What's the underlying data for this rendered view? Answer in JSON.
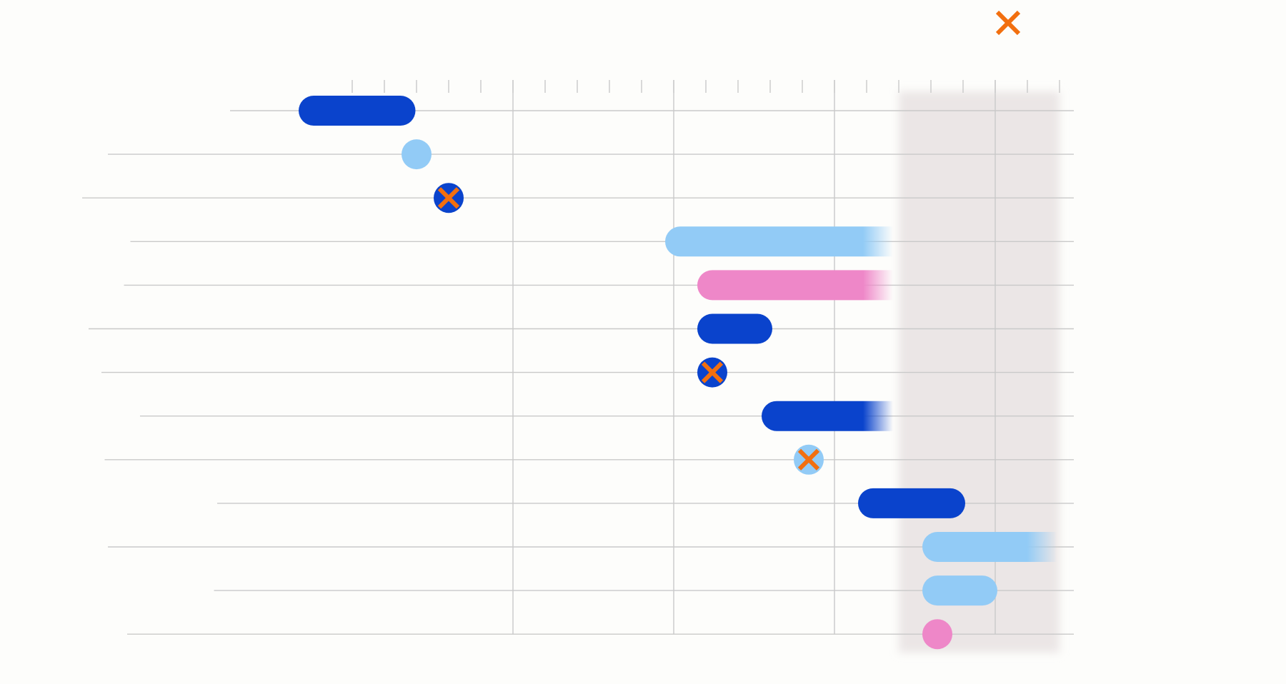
{
  "chart_data": {
    "type": "gantt",
    "title": "",
    "x_axis": {
      "unit": "month",
      "range": [
        0,
        22
      ],
      "major_every": 5,
      "grid": true
    },
    "highlight_region": {
      "from": 17.0,
      "to": 22.0,
      "color": "#ebe6e6"
    },
    "legend_marker": {
      "symbol": "x",
      "color": "#f26f0f"
    },
    "colors": {
      "dark_blue": "#0a43cc",
      "light_blue": "#92cbf6",
      "pink": "#ee87c8",
      "marker": "#f26f0f",
      "grid": "#c9c9c9"
    },
    "rows": [
      {
        "start": -1.2,
        "end": 1.5,
        "color": "dark_blue",
        "marker": false,
        "fade": false,
        "line_from": -3.8
      },
      {
        "start": 2.0,
        "end": 2.0,
        "color": "light_blue",
        "marker": false,
        "fade": false,
        "line_from": -7.6
      },
      {
        "start": 3.0,
        "end": 3.0,
        "color": "dark_blue",
        "marker": true,
        "fade": false,
        "line_from": -8.4
      },
      {
        "start": 10.2,
        "end": 16.2,
        "color": "light_blue",
        "marker": false,
        "fade": true,
        "line_from": -6.9
      },
      {
        "start": 11.2,
        "end": 16.2,
        "color": "pink",
        "marker": false,
        "fade": true,
        "line_from": -7.1
      },
      {
        "start": 11.2,
        "end": 12.6,
        "color": "dark_blue",
        "marker": false,
        "fade": false,
        "line_from": -8.2
      },
      {
        "start": 11.2,
        "end": 11.2,
        "color": "dark_blue",
        "marker": true,
        "fade": false,
        "line_from": -7.8
      },
      {
        "start": 13.2,
        "end": 16.2,
        "color": "dark_blue",
        "marker": false,
        "fade": true,
        "line_from": -6.6
      },
      {
        "start": 14.2,
        "end": 14.2,
        "color": "light_blue",
        "marker": true,
        "fade": false,
        "line_from": -7.7
      },
      {
        "start": 16.2,
        "end": 18.6,
        "color": "dark_blue",
        "marker": false,
        "fade": false,
        "line_from": -4.2
      },
      {
        "start": 18.2,
        "end": 21.3,
        "color": "light_blue",
        "marker": false,
        "fade": true,
        "line_from": -7.6
      },
      {
        "start": 18.2,
        "end": 19.6,
        "color": "light_blue",
        "marker": false,
        "fade": false,
        "line_from": -4.3
      },
      {
        "start": 18.2,
        "end": 18.2,
        "color": "pink",
        "marker": false,
        "fade": false,
        "line_from": -7.0
      }
    ]
  }
}
